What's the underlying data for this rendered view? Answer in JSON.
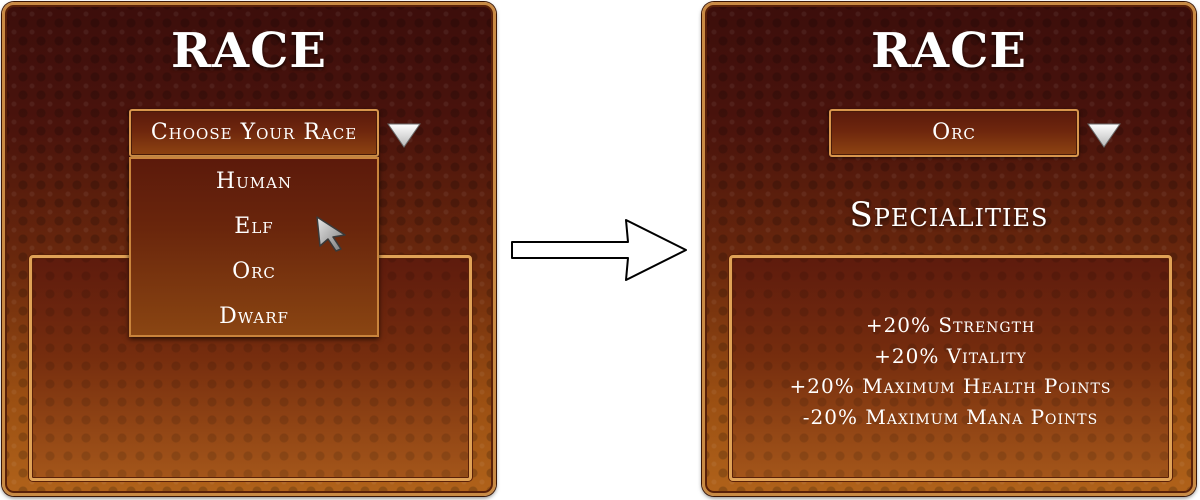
{
  "left_panel": {
    "title": "RACE",
    "select_label": "Choose Your Race",
    "options": [
      "Human",
      "Elf",
      "Orc",
      "Dwarf"
    ],
    "hovered_option": "Elf"
  },
  "right_panel": {
    "title": "RACE",
    "selected_value": "Orc",
    "specialities_heading": "Specialities",
    "stats": [
      "+20% Strength",
      "+20% Vitality",
      "+20% Maximum Health Points",
      "-20% Maximum Mana Points"
    ]
  },
  "icons": {
    "dropdown_arrow": "triangle-down-icon",
    "transition": "right-arrow-icon",
    "cursor": "mouse-pointer-icon"
  },
  "colors": {
    "frame_gold": "#c98a44",
    "bg_dark": "#3c0e0b",
    "bg_light": "#b0621a",
    "text": "#ffffff"
  }
}
